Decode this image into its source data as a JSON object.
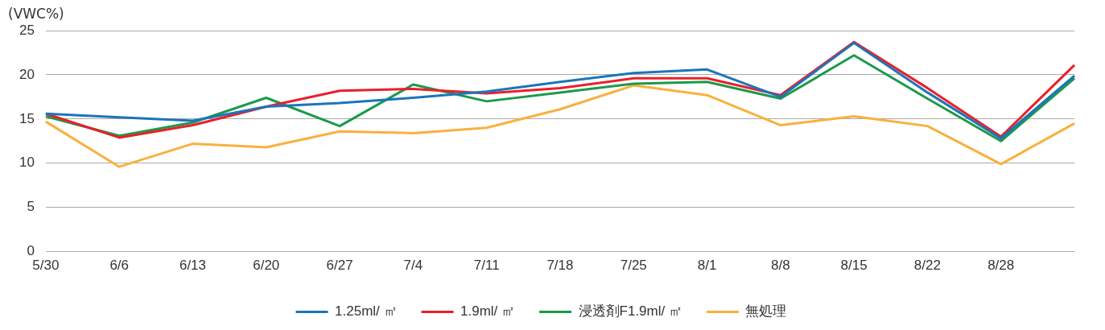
{
  "chart_data": {
    "type": "line",
    "ylabel": "(VWC%)",
    "categories": [
      "5/30",
      "6/6",
      "6/13",
      "6/20",
      "6/27",
      "7/4",
      "7/11",
      "7/18",
      "7/25",
      "8/1",
      "8/8",
      "8/15",
      "8/22",
      "8/28",
      null
    ],
    "series": [
      {
        "name": "1.25ml/ ㎡",
        "color": "#1b75bb",
        "values": [
          15.6,
          15.2,
          14.8,
          16.4,
          16.8,
          17.4,
          18.1,
          19.2,
          20.2,
          20.6,
          17.5,
          23.6,
          18.0,
          12.8,
          19.9
        ]
      },
      {
        "name": "1.9ml/ ㎡",
        "color": "#e8202a",
        "values": [
          15.6,
          12.9,
          14.3,
          16.4,
          18.2,
          18.4,
          17.9,
          18.5,
          19.6,
          19.6,
          17.7,
          23.7,
          18.5,
          13.0,
          21.1
        ]
      },
      {
        "name": "浸透剤F1.9ml/ ㎡",
        "color": "#1a9a4a",
        "values": [
          15.3,
          13.1,
          14.6,
          17.4,
          14.2,
          18.9,
          17.0,
          18.0,
          19.0,
          19.2,
          17.3,
          22.2,
          17.3,
          12.5,
          19.6
        ]
      },
      {
        "name": "無処理",
        "color": "#f8b13e",
        "values": [
          14.7,
          9.6,
          12.2,
          11.8,
          13.6,
          13.4,
          14.0,
          16.1,
          18.8,
          17.7,
          14.3,
          15.3,
          14.2,
          9.9,
          14.5
        ]
      }
    ],
    "ylim": [
      0,
      25
    ],
    "yticks": [
      0,
      5,
      10,
      15,
      20,
      25
    ],
    "grid": "y",
    "legend": "bottom",
    "marker": "none",
    "line_style": "solid"
  }
}
